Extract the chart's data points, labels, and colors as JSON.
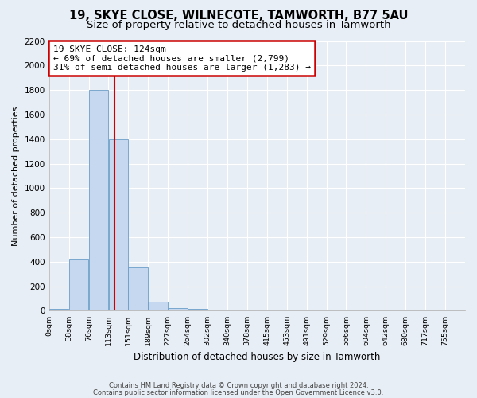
{
  "title1": "19, SKYE CLOSE, WILNECOTE, TAMWORTH, B77 5AU",
  "title2": "Size of property relative to detached houses in Tamworth",
  "xlabel": "Distribution of detached houses by size in Tamworth",
  "ylabel": "Number of detached properties",
  "bar_labels": [
    "0sqm",
    "38sqm",
    "76sqm",
    "113sqm",
    "151sqm",
    "189sqm",
    "227sqm",
    "264sqm",
    "302sqm",
    "340sqm",
    "378sqm",
    "415sqm",
    "453sqm",
    "491sqm",
    "529sqm",
    "566sqm",
    "604sqm",
    "642sqm",
    "680sqm",
    "717sqm",
    "755sqm"
  ],
  "bar_values": [
    15,
    420,
    1800,
    1400,
    355,
    75,
    25,
    15,
    0,
    0,
    0,
    0,
    0,
    0,
    0,
    0,
    0,
    0,
    0,
    0,
    0
  ],
  "bar_color": "#c5d8f0",
  "bar_edge_color": "#6a9dc8",
  "property_line_x": 124,
  "bin_width": 37.74,
  "annotation_text": "19 SKYE CLOSE: 124sqm\n← 69% of detached houses are smaller (2,799)\n31% of semi-detached houses are larger (1,283) →",
  "annotation_box_color": "#ffffff",
  "annotation_box_edge": "#cc0000",
  "vline_color": "#cc0000",
  "ylim": [
    0,
    2200
  ],
  "yticks": [
    0,
    200,
    400,
    600,
    800,
    1000,
    1200,
    1400,
    1600,
    1800,
    2000,
    2200
  ],
  "footer1": "Contains HM Land Registry data © Crown copyright and database right 2024.",
  "footer2": "Contains public sector information licensed under the Open Government Licence v3.0.",
  "background_color": "#e8eef5",
  "plot_background": "#e8eef5",
  "grid_color": "#ffffff",
  "title1_fontsize": 10.5,
  "title2_fontsize": 9.5
}
